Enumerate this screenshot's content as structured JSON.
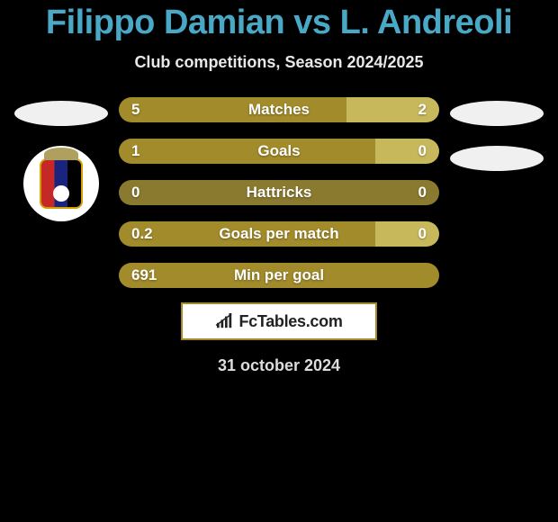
{
  "title": "Filippo Damian vs L. Andreoli",
  "subtitle": "Club competitions, Season 2024/2025",
  "date": "31 october 2024",
  "colors": {
    "left_seg": "#a28b2a",
    "right_seg": "#c8b85c",
    "neutral_seg": "#8a7a30",
    "title": "#4aa8c7"
  },
  "rows": [
    {
      "label": "Matches",
      "left_val": "5",
      "right_val": "2",
      "left_pct": 71
    },
    {
      "label": "Goals",
      "left_val": "1",
      "right_val": "0",
      "left_pct": 80
    },
    {
      "label": "Hattricks",
      "left_val": "0",
      "right_val": "0",
      "left_pct": 0,
      "neutral": true
    },
    {
      "label": "Goals per match",
      "left_val": "0.2",
      "right_val": "0",
      "left_pct": 80
    },
    {
      "label": "Min per goal",
      "left_val": "691",
      "right_val": "",
      "left_pct": 100
    }
  ],
  "logo_text": "FcTables.com"
}
